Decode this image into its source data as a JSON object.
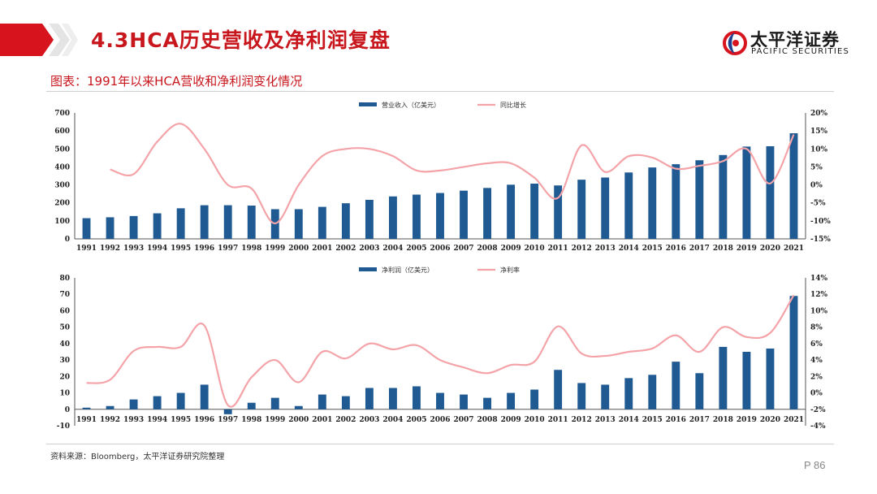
{
  "header": {
    "title": "4.3HCA历史营收及净利润复盘",
    "logo_name": "太平洋证券",
    "logo_sub": "PACIFIC SECURITIES",
    "accent_color": "#c8161d"
  },
  "caption": "图表：1991年以来HCA营收和净利润变化情况",
  "source": "资料来源：Bloomberg，太平洋证券研究院整理",
  "page_number": "P 86",
  "chart_data": [
    {
      "type": "bar",
      "title": "",
      "categories": [
        "1991",
        "1992",
        "1993",
        "1994",
        "1995",
        "1996",
        "1997",
        "1998",
        "1999",
        "2000",
        "2001",
        "2002",
        "2003",
        "2004",
        "2005",
        "2006",
        "2007",
        "2008",
        "2009",
        "2010",
        "2011",
        "2012",
        "2013",
        "2014",
        "2015",
        "2016",
        "2017",
        "2018",
        "2019",
        "2020",
        "2021"
      ],
      "series": [
        {
          "name": "营业收入（亿美元）",
          "type": "bar",
          "axis": "left",
          "color": "#1f5a92",
          "values": [
            115,
            120,
            127,
            142,
            170,
            187,
            187,
            185,
            165,
            165,
            178,
            198,
            217,
            236,
            246,
            255,
            268,
            283,
            301,
            307,
            297,
            329,
            341,
            369,
            397,
            415,
            437,
            466,
            513,
            515,
            587
          ]
        },
        {
          "name": "同比增长",
          "type": "line",
          "axis": "right",
          "color": "#f4a3a8",
          "values": [
            null,
            4.3,
            3.0,
            12.0,
            17.0,
            10.0,
            0.0,
            -1.0,
            -10.7,
            0.0,
            8.0,
            10.0,
            10.0,
            8.0,
            4.0,
            4.0,
            5.0,
            6.0,
            6.0,
            2.0,
            -3.6,
            11.0,
            3.6,
            8.0,
            7.6,
            4.5,
            5.3,
            6.6,
            10.0,
            0.4,
            14.0
          ]
        }
      ],
      "left_axis": {
        "min": 0,
        "max": 700,
        "step": 100
      },
      "right_axis": {
        "min": -15,
        "max": 20,
        "step": 5,
        "unit": "%"
      },
      "legend_position": "top-center"
    },
    {
      "type": "bar",
      "title": "",
      "categories": [
        "1991",
        "1992",
        "1993",
        "1994",
        "1995",
        "1996",
        "1997",
        "1998",
        "1999",
        "2000",
        "2001",
        "2002",
        "2003",
        "2004",
        "2005",
        "2006",
        "2007",
        "2008",
        "2009",
        "2010",
        "2011",
        "2012",
        "2013",
        "2014",
        "2015",
        "2016",
        "2017",
        "2018",
        "2019",
        "2020",
        "2021"
      ],
      "series": [
        {
          "name": "净利润（亿美元）",
          "type": "bar",
          "axis": "left",
          "color": "#1f5a92",
          "values": [
            1,
            2,
            6,
            8,
            10,
            15,
            -3,
            4,
            7,
            2,
            9,
            8,
            13,
            13,
            14,
            10,
            9,
            7,
            10,
            12,
            24,
            16,
            15,
            19,
            21,
            29,
            22,
            38,
            35,
            37,
            69
          ]
        },
        {
          "name": "净利率",
          "type": "line",
          "axis": "right",
          "color": "#f4a3a8",
          "values": [
            1.2,
            1.6,
            5.1,
            5.6,
            5.6,
            8.2,
            -1.5,
            1.9,
            4.0,
            1.3,
            5.0,
            4.2,
            6.0,
            5.3,
            5.8,
            4.0,
            3.1,
            2.4,
            3.4,
            3.8,
            8.1,
            4.8,
            4.5,
            5.0,
            5.4,
            7.0,
            5.0,
            8.0,
            6.8,
            7.3,
            11.9
          ]
        }
      ],
      "left_axis": {
        "min": -10,
        "max": 80,
        "step": 10
      },
      "right_axis": {
        "min": -4,
        "max": 14,
        "step": 2,
        "unit": "%"
      },
      "legend_position": "top-center"
    }
  ]
}
